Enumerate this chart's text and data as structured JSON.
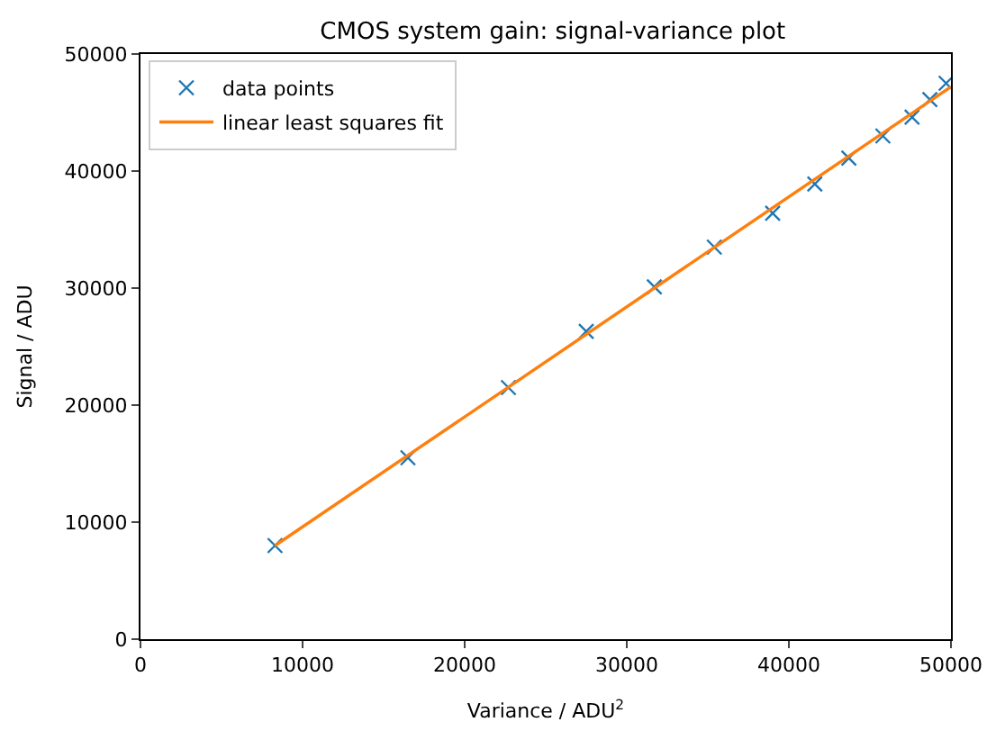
{
  "chart_data": {
    "type": "scatter",
    "title": "CMOS system gain: signal-variance plot",
    "xlabel": "Variance / ADU$^{2}$",
    "ylabel": "Signal / ADU",
    "xlim": [
      0,
      50000
    ],
    "ylim": [
      0,
      50000
    ],
    "xticks": [
      0,
      10000,
      20000,
      30000,
      40000,
      50000
    ],
    "yticks": [
      0,
      10000,
      20000,
      30000,
      40000,
      50000
    ],
    "legend": "top left",
    "series": [
      {
        "name": "data points",
        "marker": "cross",
        "color": "#1f77b4",
        "x": [
          8300,
          16500,
          22700,
          27500,
          31700,
          35400,
          39000,
          41600,
          43700,
          45800,
          47600,
          48700,
          49700
        ],
        "values": [
          8000,
          15500,
          21500,
          26300,
          30100,
          33500,
          36400,
          38900,
          41100,
          43000,
          44600,
          46100,
          47500
        ]
      },
      {
        "name": "linear least squares fit",
        "type": "line",
        "marker": "none",
        "line_style": "solid",
        "color": "#ff7f0e",
        "x": [
          8300,
          50000
        ],
        "values": [
          8000,
          47200
        ]
      }
    ]
  }
}
